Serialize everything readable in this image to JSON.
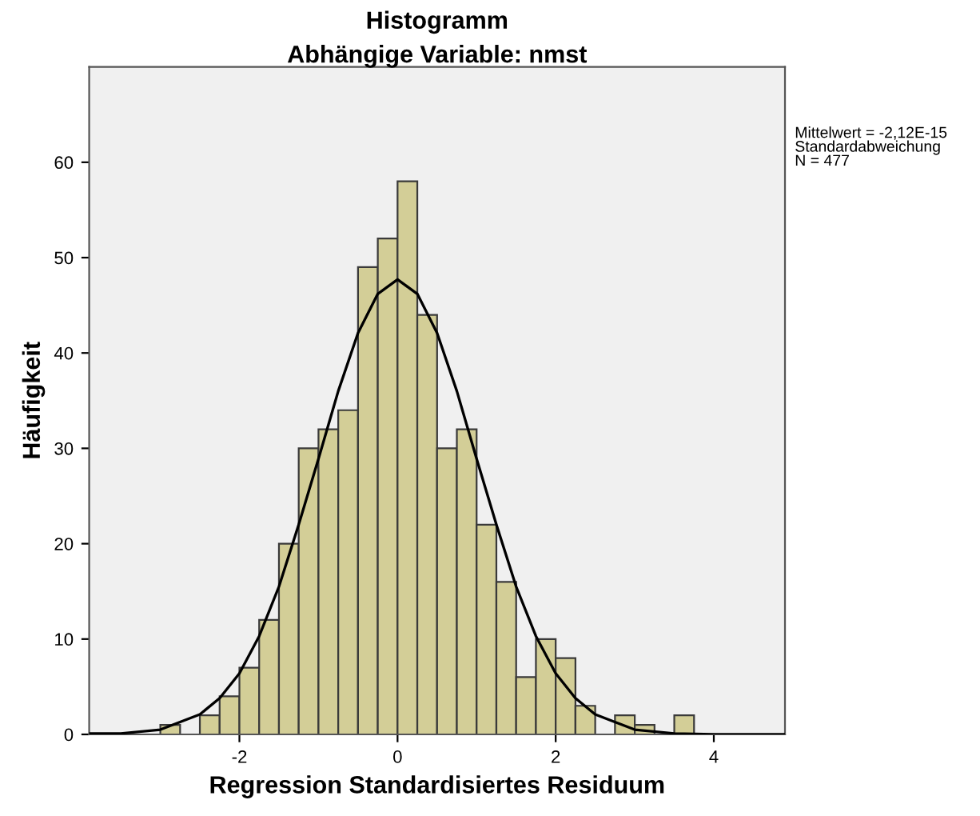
{
  "chart_data": {
    "type": "histogram",
    "title": "Histogramm",
    "subtitle": "Abhängige Variable: nmst",
    "xlabel": "Regression Standardisiertes Residuum",
    "ylabel": "Häufigkeit",
    "bins": [
      -3.0,
      -2.75,
      -2.5,
      -2.25,
      -2.0,
      -1.75,
      -1.5,
      -1.25,
      -1.0,
      -0.75,
      -0.5,
      -0.25,
      0.0,
      0.25,
      0.5,
      0.75,
      1.0,
      1.25,
      1.5,
      1.75,
      2.0,
      2.25,
      2.5,
      2.75,
      3.0,
      3.25,
      3.5,
      3.75
    ],
    "values": [
      1,
      0,
      2,
      4,
      7,
      12,
      20,
      30,
      32,
      34,
      49,
      52,
      58,
      44,
      30,
      32,
      22,
      16,
      6,
      10,
      8,
      3,
      0,
      2,
      1,
      0,
      2
    ],
    "color": "#d3ce97",
    "series": [
      {
        "type": "line",
        "color": "#000000",
        "x": [
          -3.9,
          -3.5,
          -3.0,
          -2.5,
          -2.25,
          -2.0,
          -1.75,
          -1.5,
          -1.25,
          -1.0,
          -0.75,
          -0.5,
          -0.25,
          0.0,
          0.25,
          0.5,
          0.75,
          1.0,
          1.25,
          1.5,
          1.75,
          2.0,
          2.25,
          2.5,
          3.0,
          3.5,
          4.0,
          4.9
        ],
        "values": [
          0.1,
          0.1,
          0.5,
          2.1,
          3.8,
          6.4,
          10.3,
          15.5,
          22,
          28.9,
          36,
          42.1,
          46.2,
          47.7,
          46.2,
          42.1,
          36,
          28.9,
          22,
          15.5,
          10.3,
          6.4,
          3.8,
          2.1,
          0.5,
          0.1,
          0,
          0
        ]
      }
    ],
    "xlim": [
      -3.9,
      4.9
    ],
    "ylim": [
      0,
      70
    ],
    "xticks": [
      -2,
      0,
      2,
      4
    ],
    "yticks": [
      0,
      10,
      20,
      30,
      40,
      50,
      60
    ],
    "annotations": [
      "Mittelwert = -2,12E-15\nStandardabweichung\nN = 477"
    ]
  }
}
